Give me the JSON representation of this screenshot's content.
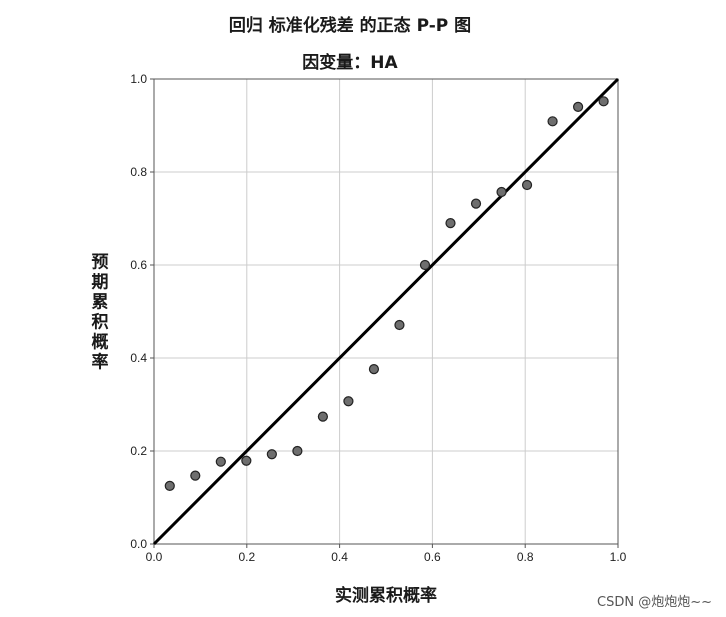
{
  "chart_data": {
    "type": "scatter",
    "title": "回归 标准化残差 的正态 P-P 图",
    "subtitle": "因变量：HA",
    "xlabel": "实测累积概率",
    "ylabel": "预期累积概率",
    "xlim": [
      0.0,
      1.0
    ],
    "ylim": [
      0.0,
      1.0
    ],
    "x_ticks": [
      "0.0",
      "0.2",
      "0.4",
      "0.6",
      "0.8",
      "1.0"
    ],
    "y_ticks": [
      "0.0",
      "0.2",
      "0.4",
      "0.6",
      "0.8",
      "1.0"
    ],
    "grid": true,
    "reference_line": [
      [
        0.0,
        0.0
      ],
      [
        1.0,
        1.0
      ]
    ],
    "points": [
      {
        "x": 0.034,
        "y": 0.125
      },
      {
        "x": 0.089,
        "y": 0.147
      },
      {
        "x": 0.144,
        "y": 0.177
      },
      {
        "x": 0.199,
        "y": 0.179
      },
      {
        "x": 0.254,
        "y": 0.193
      },
      {
        "x": 0.309,
        "y": 0.2
      },
      {
        "x": 0.364,
        "y": 0.274
      },
      {
        "x": 0.419,
        "y": 0.307
      },
      {
        "x": 0.474,
        "y": 0.376
      },
      {
        "x": 0.529,
        "y": 0.471
      },
      {
        "x": 0.584,
        "y": 0.6
      },
      {
        "x": 0.639,
        "y": 0.69
      },
      {
        "x": 0.694,
        "y": 0.732
      },
      {
        "x": 0.749,
        "y": 0.757
      },
      {
        "x": 0.804,
        "y": 0.772
      },
      {
        "x": 0.859,
        "y": 0.909
      },
      {
        "x": 0.914,
        "y": 0.94
      },
      {
        "x": 0.969,
        "y": 0.952
      }
    ],
    "colors": {
      "point_fill": "#6e6e6e",
      "point_stroke": "#222222",
      "line": "#000000",
      "grid": "#cccccc",
      "axis": "#555555"
    }
  },
  "watermark": "CSDN @炮炮炮~~"
}
